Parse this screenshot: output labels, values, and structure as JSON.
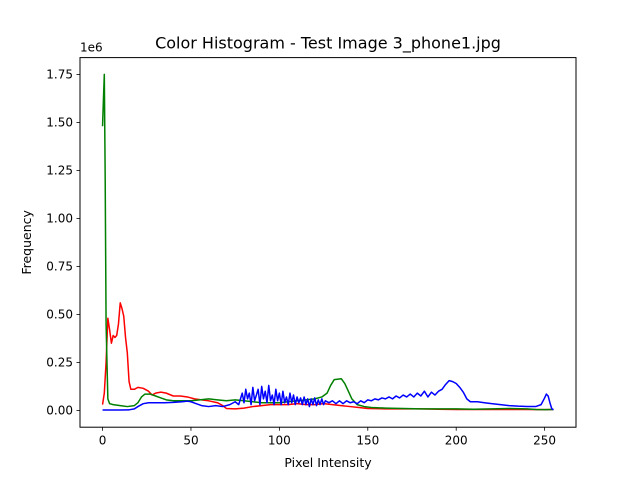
{
  "chart_data": {
    "type": "line",
    "title": "Color Histogram - Test Image 3_phone1.jpg",
    "xlabel": "Pixel Intensity",
    "ylabel": "Frequency",
    "y_multiplier_label": "1e6",
    "xlim": [
      -12.75,
      267.75
    ],
    "ylim": [
      -0.0875,
      1.8375
    ],
    "x_ticks": [
      0,
      50,
      100,
      150,
      200,
      250
    ],
    "x_tick_labels": [
      "0",
      "50",
      "100",
      "150",
      "200",
      "250"
    ],
    "y_ticks": [
      0,
      0.25,
      0.5,
      0.75,
      1.0,
      1.25,
      1.5,
      1.75
    ],
    "y_tick_labels": [
      "0.00",
      "0.25",
      "0.50",
      "0.75",
      "1.00",
      "1.25",
      "1.50",
      "1.75"
    ],
    "grid": false,
    "legend": "none",
    "series": [
      {
        "color": "#ff0000",
        "points": [
          [
            0,
            0.03
          ],
          [
            1,
            0.09
          ],
          [
            2,
            0.25
          ],
          [
            3,
            0.48
          ],
          [
            4,
            0.42
          ],
          [
            5,
            0.35
          ],
          [
            6,
            0.39
          ],
          [
            7,
            0.38
          ],
          [
            8,
            0.39
          ],
          [
            9,
            0.45
          ],
          [
            10,
            0.56
          ],
          [
            11,
            0.53
          ],
          [
            12,
            0.49
          ],
          [
            13,
            0.38
          ],
          [
            14,
            0.3
          ],
          [
            15,
            0.15
          ],
          [
            16,
            0.11
          ],
          [
            18,
            0.11
          ],
          [
            20,
            0.12
          ],
          [
            23,
            0.115
          ],
          [
            26,
            0.1
          ],
          [
            28,
            0.08
          ],
          [
            30,
            0.09
          ],
          [
            33,
            0.095
          ],
          [
            36,
            0.09
          ],
          [
            40,
            0.075
          ],
          [
            44,
            0.075
          ],
          [
            48,
            0.07
          ],
          [
            52,
            0.06
          ],
          [
            56,
            0.055
          ],
          [
            60,
            0.05
          ],
          [
            65,
            0.04
          ],
          [
            68,
            0.025
          ],
          [
            70,
            0.01
          ],
          [
            75,
            0.008
          ],
          [
            80,
            0.012
          ],
          [
            85,
            0.02
          ],
          [
            90,
            0.025
          ],
          [
            95,
            0.03
          ],
          [
            100,
            0.03
          ],
          [
            105,
            0.03
          ],
          [
            110,
            0.035
          ],
          [
            115,
            0.03
          ],
          [
            120,
            0.03
          ],
          [
            125,
            0.035
          ],
          [
            130,
            0.03
          ],
          [
            135,
            0.025
          ],
          [
            140,
            0.02
          ],
          [
            145,
            0.015
          ],
          [
            150,
            0.01
          ],
          [
            160,
            0.008
          ],
          [
            170,
            0.008
          ],
          [
            180,
            0.008
          ],
          [
            190,
            0.006
          ],
          [
            200,
            0.005
          ],
          [
            210,
            0.005
          ],
          [
            220,
            0.005
          ],
          [
            230,
            0.005
          ],
          [
            240,
            0.005
          ],
          [
            250,
            0.004
          ],
          [
            255,
            0.005
          ]
        ]
      },
      {
        "color": "#008000",
        "points": [
          [
            0,
            1.48
          ],
          [
            0.5,
            1.62
          ],
          [
            1,
            1.75
          ],
          [
            1.5,
            1.2
          ],
          [
            2,
            0.45
          ],
          [
            3,
            0.06
          ],
          [
            4,
            0.035
          ],
          [
            6,
            0.03
          ],
          [
            10,
            0.025
          ],
          [
            14,
            0.02
          ],
          [
            18,
            0.025
          ],
          [
            20,
            0.04
          ],
          [
            22,
            0.07
          ],
          [
            24,
            0.085
          ],
          [
            27,
            0.085
          ],
          [
            30,
            0.075
          ],
          [
            33,
            0.065
          ],
          [
            36,
            0.055
          ],
          [
            40,
            0.05
          ],
          [
            45,
            0.05
          ],
          [
            50,
            0.05
          ],
          [
            55,
            0.055
          ],
          [
            60,
            0.06
          ],
          [
            65,
            0.055
          ],
          [
            70,
            0.05
          ],
          [
            75,
            0.055
          ],
          [
            80,
            0.05
          ],
          [
            85,
            0.045
          ],
          [
            90,
            0.04
          ],
          [
            95,
            0.04
          ],
          [
            100,
            0.04
          ],
          [
            105,
            0.045
          ],
          [
            110,
            0.05
          ],
          [
            115,
            0.055
          ],
          [
            120,
            0.06
          ],
          [
            124,
            0.07
          ],
          [
            127,
            0.09
          ],
          [
            129,
            0.13
          ],
          [
            131,
            0.16
          ],
          [
            135,
            0.165
          ],
          [
            137,
            0.14
          ],
          [
            139,
            0.1
          ],
          [
            141,
            0.06
          ],
          [
            144,
            0.03
          ],
          [
            148,
            0.02
          ],
          [
            152,
            0.015
          ],
          [
            160,
            0.012
          ],
          [
            170,
            0.01
          ],
          [
            180,
            0.008
          ],
          [
            190,
            0.008
          ],
          [
            200,
            0.008
          ],
          [
            210,
            0.006
          ],
          [
            220,
            0.008
          ],
          [
            230,
            0.01
          ],
          [
            240,
            0.008
          ],
          [
            245,
            0.005
          ],
          [
            250,
            0.004
          ],
          [
            255,
            0.005
          ]
        ]
      },
      {
        "color": "#0000ff",
        "points": [
          [
            0,
            0.002
          ],
          [
            5,
            0.002
          ],
          [
            10,
            0.002
          ],
          [
            15,
            0.003
          ],
          [
            18,
            0.008
          ],
          [
            20,
            0.02
          ],
          [
            23,
            0.035
          ],
          [
            26,
            0.04
          ],
          [
            30,
            0.04
          ],
          [
            35,
            0.04
          ],
          [
            40,
            0.042
          ],
          [
            45,
            0.045
          ],
          [
            48,
            0.048
          ],
          [
            50,
            0.045
          ],
          [
            53,
            0.035
          ],
          [
            56,
            0.025
          ],
          [
            60,
            0.02
          ],
          [
            64,
            0.025
          ],
          [
            68,
            0.02
          ],
          [
            72,
            0.03
          ],
          [
            75,
            0.045
          ],
          [
            77,
            0.03
          ],
          [
            79,
            0.09
          ],
          [
            80,
            0.04
          ],
          [
            81,
            0.11
          ],
          [
            82,
            0.06
          ],
          [
            83,
            0.09
          ],
          [
            84,
            0.03
          ],
          [
            85,
            0.12
          ],
          [
            86,
            0.05
          ],
          [
            87,
            0.08
          ],
          [
            88,
            0.11
          ],
          [
            89,
            0.03
          ],
          [
            90,
            0.125
          ],
          [
            91,
            0.06
          ],
          [
            92,
            0.1
          ],
          [
            93,
            0.04
          ],
          [
            94,
            0.13
          ],
          [
            95,
            0.05
          ],
          [
            96,
            0.08
          ],
          [
            97,
            0.03
          ],
          [
            98,
            0.11
          ],
          [
            99,
            0.05
          ],
          [
            100,
            0.09
          ],
          [
            101,
            0.03
          ],
          [
            102,
            0.1
          ],
          [
            103,
            0.04
          ],
          [
            104,
            0.07
          ],
          [
            105,
            0.03
          ],
          [
            106,
            0.09
          ],
          [
            107,
            0.04
          ],
          [
            108,
            0.08
          ],
          [
            109,
            0.03
          ],
          [
            110,
            0.07
          ],
          [
            111,
            0.04
          ],
          [
            112,
            0.065
          ],
          [
            113,
            0.03
          ],
          [
            114,
            0.07
          ],
          [
            115,
            0.03
          ],
          [
            116,
            0.06
          ],
          [
            117,
            0.02
          ],
          [
            118,
            0.06
          ],
          [
            119,
            0.03
          ],
          [
            120,
            0.065
          ],
          [
            121,
            0.025
          ],
          [
            122,
            0.055
          ],
          [
            123,
            0.03
          ],
          [
            124,
            0.06
          ],
          [
            125,
            0.03
          ],
          [
            126,
            0.05
          ],
          [
            128,
            0.04
          ],
          [
            130,
            0.05
          ],
          [
            132,
            0.035
          ],
          [
            134,
            0.05
          ],
          [
            136,
            0.035
          ],
          [
            138,
            0.05
          ],
          [
            140,
            0.04
          ],
          [
            142,
            0.045
          ],
          [
            144,
            0.035
          ],
          [
            146,
            0.05
          ],
          [
            148,
            0.04
          ],
          [
            150,
            0.055
          ],
          [
            152,
            0.05
          ],
          [
            154,
            0.06
          ],
          [
            156,
            0.055
          ],
          [
            158,
            0.065
          ],
          [
            160,
            0.06
          ],
          [
            162,
            0.07
          ],
          [
            164,
            0.06
          ],
          [
            166,
            0.075
          ],
          [
            168,
            0.065
          ],
          [
            170,
            0.08
          ],
          [
            172,
            0.07
          ],
          [
            174,
            0.085
          ],
          [
            176,
            0.07
          ],
          [
            178,
            0.09
          ],
          [
            180,
            0.075
          ],
          [
            182,
            0.1
          ],
          [
            184,
            0.07
          ],
          [
            186,
            0.095
          ],
          [
            188,
            0.08
          ],
          [
            190,
            0.1
          ],
          [
            192,
            0.11
          ],
          [
            194,
            0.135
          ],
          [
            196,
            0.155
          ],
          [
            198,
            0.15
          ],
          [
            200,
            0.14
          ],
          [
            202,
            0.12
          ],
          [
            204,
            0.095
          ],
          [
            206,
            0.06
          ],
          [
            208,
            0.045
          ],
          [
            212,
            0.045
          ],
          [
            216,
            0.04
          ],
          [
            220,
            0.035
          ],
          [
            225,
            0.03
          ],
          [
            230,
            0.025
          ],
          [
            235,
            0.022
          ],
          [
            240,
            0.02
          ],
          [
            245,
            0.02
          ],
          [
            248,
            0.03
          ],
          [
            250,
            0.065
          ],
          [
            251,
            0.085
          ],
          [
            252,
            0.075
          ],
          [
            253,
            0.04
          ],
          [
            254,
            0.01
          ],
          [
            255,
            0.003
          ]
        ]
      }
    ]
  }
}
